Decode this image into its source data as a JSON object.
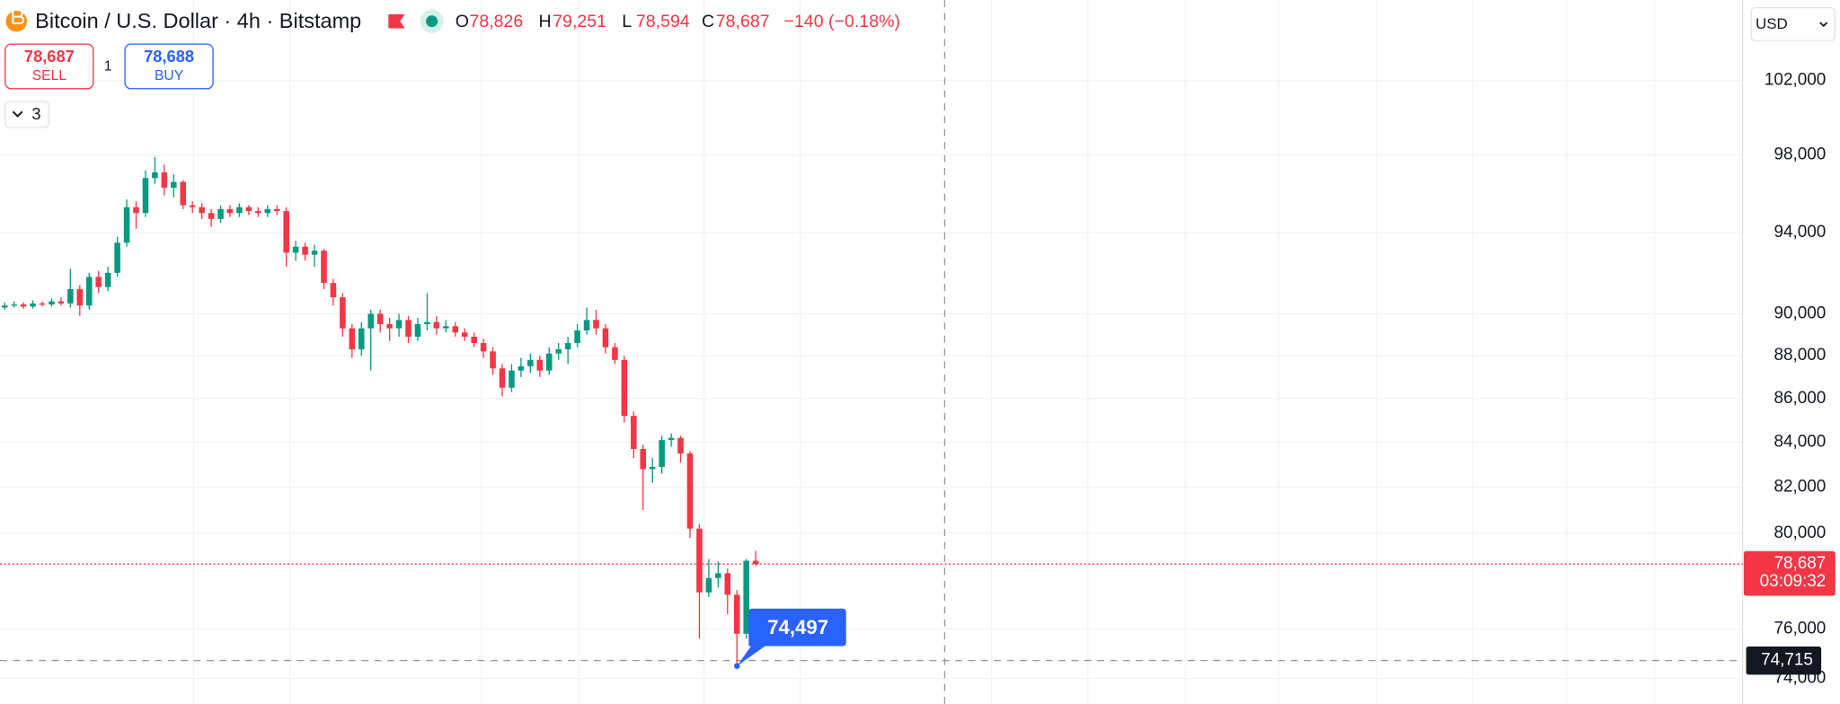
{
  "chart_data": {
    "type": "candlestick",
    "title": "Bitcoin / U.S. Dollar · 4h · Bitstamp",
    "ohlc_header": [
      {
        "label": "O",
        "value": "78,826"
      },
      {
        "label": "H",
        "value": "79,251"
      },
      {
        "label": "L",
        "value": "78,594"
      },
      {
        "label": "C",
        "value": "78,687"
      }
    ],
    "change": "−140 (−0.18%)",
    "sell": {
      "price": "78,687",
      "label": "SELL"
    },
    "quantity": "1",
    "buy": {
      "price": "78,688",
      "label": "BUY"
    },
    "indicators_count": "3",
    "currency": "USD",
    "up_color": "#089981",
    "down_color": "#f23645",
    "log_scale": true,
    "grid": true,
    "ylim": [
      73000,
      106500
    ],
    "yticks": [
      {
        "value": 74000,
        "label": "74,000"
      },
      {
        "value": 76000,
        "label": "76,000"
      },
      {
        "value": 80000,
        "label": "80,000"
      },
      {
        "value": 82000,
        "label": "82,000"
      },
      {
        "value": 84000,
        "label": "84,000"
      },
      {
        "value": 86000,
        "label": "86,000"
      },
      {
        "value": 88000,
        "label": "88,000"
      },
      {
        "value": 90000,
        "label": "90,000"
      },
      {
        "value": 94000,
        "label": "94,000"
      },
      {
        "value": 98000,
        "label": "98,000"
      },
      {
        "value": 102000,
        "label": "102,000"
      }
    ],
    "open": [
      90300,
      90400,
      90450,
      90350,
      90500,
      90450,
      90600,
      90500,
      91200,
      90400,
      91800,
      91300,
      92000,
      93500,
      95300,
      95000,
      96800,
      97100,
      96300,
      96600,
      95400,
      95300,
      95000,
      94700,
      95200,
      95000,
      95300,
      95100,
      95000,
      95200,
      95100,
      93000,
      93300,
      92900,
      93100,
      91500,
      90800,
      89300,
      88300,
      89300,
      90000,
      89500,
      89300,
      89700,
      88900,
      89500,
      89600,
      89300,
      89400,
      89100,
      88900,
      88600,
      88200,
      87400,
      86500,
      87300,
      87500,
      87800,
      87300,
      88100,
      88300,
      88600,
      89200,
      89700,
      89300,
      88400,
      87800,
      85200,
      83700,
      82800,
      82900,
      84100,
      84200,
      83500,
      80200,
      77500,
      78100,
      78300,
      77400,
      75800,
      78826
    ],
    "high": [
      90550,
      90600,
      90550,
      90650,
      90600,
      90750,
      90800,
      92200,
      91400,
      92000,
      92100,
      92300,
      93800,
      95700,
      95600,
      97200,
      97900,
      97500,
      97000,
      96700,
      95600,
      95500,
      95200,
      95400,
      95400,
      95500,
      95400,
      95300,
      95400,
      95400,
      95300,
      93600,
      93500,
      93400,
      93200,
      91700,
      91000,
      89500,
      89600,
      90200,
      90200,
      89800,
      90000,
      89900,
      89800,
      91000,
      89900,
      89700,
      89600,
      89300,
      89100,
      88800,
      88400,
      87600,
      87600,
      87900,
      88100,
      88000,
      88400,
      88600,
      88900,
      89500,
      90300,
      90200,
      89500,
      88600,
      88000,
      85400,
      83900,
      83300,
      84300,
      84400,
      84300,
      83600,
      80400,
      78900,
      78800,
      78500,
      77600,
      78900,
      79251
    ],
    "low": [
      90200,
      90300,
      90250,
      90250,
      90350,
      90350,
      90400,
      90300,
      89900,
      90200,
      91000,
      91100,
      91800,
      93300,
      94200,
      94800,
      96500,
      95900,
      95800,
      95200,
      95000,
      94700,
      94300,
      94500,
      94800,
      94800,
      94900,
      94800,
      94800,
      94900,
      92300,
      92600,
      92600,
      92300,
      91200,
      90400,
      88900,
      87900,
      88000,
      87300,
      89100,
      88700,
      88900,
      88600,
      88700,
      89200,
      89000,
      89100,
      88900,
      88700,
      88400,
      87900,
      87100,
      86100,
      86300,
      87000,
      87200,
      87000,
      87100,
      87800,
      87600,
      88400,
      89000,
      89000,
      88100,
      87600,
      84900,
      83300,
      81000,
      82200,
      82600,
      83800,
      83100,
      79800,
      75600,
      77300,
      77700,
      76600,
      74497,
      75600,
      78594
    ],
    "close": [
      90400,
      90450,
      90350,
      90500,
      90450,
      90600,
      90500,
      91200,
      90400,
      91800,
      91300,
      92000,
      93500,
      95300,
      95000,
      96800,
      97100,
      96300,
      96600,
      95400,
      95300,
      95000,
      94700,
      95200,
      95000,
      95300,
      95100,
      95000,
      95200,
      95100,
      93000,
      93300,
      92900,
      93100,
      91500,
      90800,
      89300,
      88300,
      89300,
      90000,
      89500,
      89300,
      89700,
      88900,
      89500,
      89600,
      89300,
      89400,
      89100,
      88900,
      88600,
      88200,
      87400,
      86500,
      87300,
      87500,
      87800,
      87300,
      88100,
      88300,
      88600,
      89200,
      89700,
      89300,
      88400,
      87800,
      85200,
      83700,
      82800,
      82900,
      84100,
      84200,
      83500,
      80200,
      77500,
      78100,
      78300,
      77400,
      75800,
      78826,
      78687
    ],
    "last_price": {
      "value": 78687,
      "label": "78,687"
    },
    "countdown": "03:09:32",
    "crosshair_price": {
      "value": 74715,
      "label": "74,715"
    },
    "low_callout": {
      "value": 74497,
      "label": "74,497"
    }
  }
}
